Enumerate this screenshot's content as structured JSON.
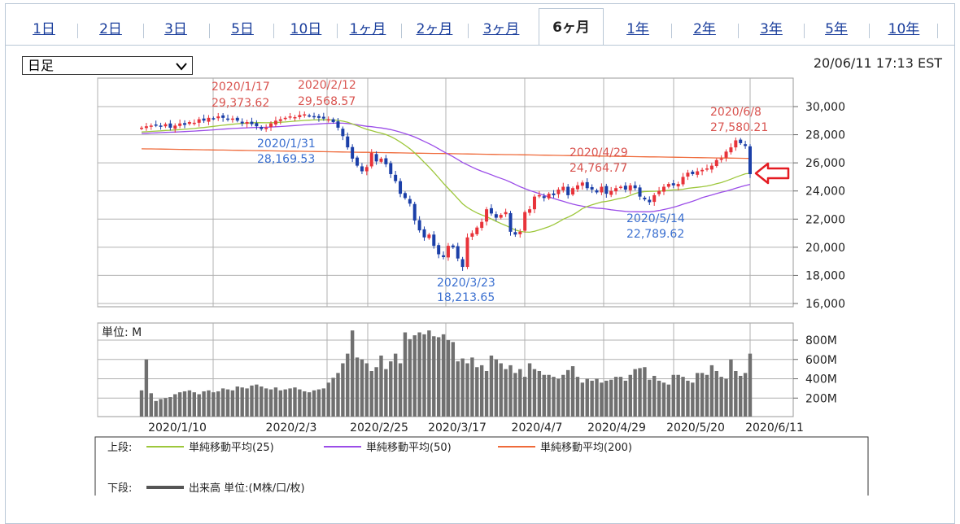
{
  "tabs": [
    {
      "label": "1日",
      "active": false
    },
    {
      "label": "2日",
      "active": false
    },
    {
      "label": "3日",
      "active": false
    },
    {
      "label": "5日",
      "active": false
    },
    {
      "label": "10日",
      "active": false
    },
    {
      "label": "1ヶ月",
      "active": false
    },
    {
      "label": "2ヶ月",
      "active": false
    },
    {
      "label": "3ヶ月",
      "active": false
    },
    {
      "label": "6ヶ月",
      "active": true
    },
    {
      "label": "1年",
      "active": false
    },
    {
      "label": "2年",
      "active": false
    },
    {
      "label": "3年",
      "active": false
    },
    {
      "label": "5年",
      "active": false
    },
    {
      "label": "10年",
      "active": false
    }
  ],
  "period_select": {
    "value": "日足"
  },
  "timestamp": "20/06/11 17:13 EST",
  "icons": {
    "dropdown": "chevron-down-icon",
    "arrow": "left-arrow-icon"
  },
  "colors": {
    "up": "#e8333a",
    "down": "#1b3fa8",
    "ma25": "#9dc73b",
    "ma50": "#9b4de8",
    "ma200": "#ef6a3a",
    "volume": "#707070",
    "arrow": "#e41b22",
    "highlow_label": "#d9534f",
    "low_label": "#3a6fd0"
  },
  "chart_data": {
    "type": "candlestick",
    "x_ticks": [
      "2020/1/10",
      "2020/2/3",
      "2020/2/25",
      "2020/3/17",
      "2020/4/7",
      "2020/4/29",
      "2020/5/20",
      "2020/6/11"
    ],
    "y_ticks": [
      "30,000",
      "28,000",
      "26,000",
      "24,000",
      "22,000",
      "20,000",
      "18,000",
      "16,000"
    ],
    "ylim": [
      16000,
      31500
    ],
    "volume_unit_label": "単位: M",
    "volume_ticks": [
      "800M",
      "600M",
      "400M",
      "200M"
    ],
    "annotations": [
      {
        "date": "2020/1/17",
        "value": "29,373.62",
        "type": "high"
      },
      {
        "date": "2020/2/12",
        "value": "29,568.57",
        "type": "high"
      },
      {
        "date": "2020/1/31",
        "value": "28,169.53",
        "type": "low"
      },
      {
        "date": "2020/3/23",
        "value": "18,213.65",
        "type": "low"
      },
      {
        "date": "2020/4/29",
        "value": "24,764.77",
        "type": "high"
      },
      {
        "date": "2020/5/14",
        "value": "22,789.62",
        "type": "low"
      },
      {
        "date": "2020/6/8",
        "value": "27,580.21",
        "type": "high"
      }
    ],
    "closes": [
      28500,
      28600,
      28650,
      28700,
      28600,
      28750,
      28500,
      28650,
      28800,
      28700,
      28900,
      28850,
      29100,
      29000,
      29200,
      29150,
      29300,
      29200,
      29100,
      29150,
      29000,
      28800,
      28900,
      28750,
      28600,
      28400,
      28500,
      28800,
      29000,
      29100,
      29200,
      29300,
      29250,
      29400,
      29450,
      29350,
      29300,
      29200,
      29150,
      29100,
      28900,
      28500,
      27900,
      27100,
      26300,
      25800,
      25400,
      25700,
      26700,
      26100,
      26300,
      25900,
      25200,
      24700,
      23800,
      23500,
      23100,
      21900,
      21200,
      20700,
      20900,
      20100,
      19500,
      19300,
      20100,
      20000,
      19200,
      18600,
      20700,
      21000,
      21400,
      21800,
      22700,
      22400,
      22100,
      22300,
      22500,
      21100,
      20900,
      21100,
      22500,
      22700,
      23600,
      23700,
      23500,
      23800,
      23700,
      24100,
      24300,
      23700,
      24200,
      24400,
      24600,
      24200,
      24100,
      23900,
      24300,
      23800,
      24000,
      24200,
      24300,
      24100,
      24400,
      24200,
      23600,
      23400,
      23200,
      23700,
      24000,
      24300,
      24500,
      24400,
      24500,
      25000,
      25300,
      25200,
      25400,
      25500,
      25600,
      25800,
      26200,
      26300,
      26800,
      27100,
      27600,
      27400,
      27200,
      25200
    ],
    "volumes": [
      280,
      600,
      250,
      170,
      190,
      200,
      210,
      240,
      260,
      270,
      280,
      260,
      240,
      270,
      280,
      260,
      270,
      300,
      290,
      280,
      320,
      310,
      300,
      330,
      340,
      320,
      300,
      290,
      310,
      280,
      290,
      300,
      310,
      290,
      270,
      260,
      280,
      290,
      300,
      360,
      410,
      460,
      560,
      660,
      900,
      620,
      600,
      560,
      480,
      520,
      640,
      500,
      580,
      660,
      560,
      880,
      810,
      850,
      880,
      860,
      900,
      840,
      830,
      860,
      800,
      780,
      580,
      610,
      560,
      620,
      520,
      540,
      480,
      640,
      600,
      560,
      500,
      540,
      460,
      500,
      420,
      560,
      500,
      480,
      440,
      440,
      420,
      400,
      440,
      490,
      530,
      420,
      360,
      400,
      380,
      400,
      360,
      380,
      390,
      420,
      420,
      380,
      440,
      500,
      510,
      520,
      390,
      430,
      380,
      360,
      340,
      440,
      440,
      420,
      380,
      360,
      460,
      460,
      440,
      540,
      480,
      420,
      400,
      600,
      480,
      430,
      460,
      660
    ],
    "ma25": [],
    "ma50": [],
    "ma200": []
  },
  "legend": {
    "upper_label": "上段:",
    "items": [
      {
        "name": "単純移動平均(25)",
        "color_key": "ma25"
      },
      {
        "name": "単純移動平均(50)",
        "color_key": "ma50"
      },
      {
        "name": "単純移動平均(200)",
        "color_key": "ma200"
      }
    ],
    "lower_label": "下段:",
    "volume_item": "出来高 単位:(M株/口/枚)"
  }
}
